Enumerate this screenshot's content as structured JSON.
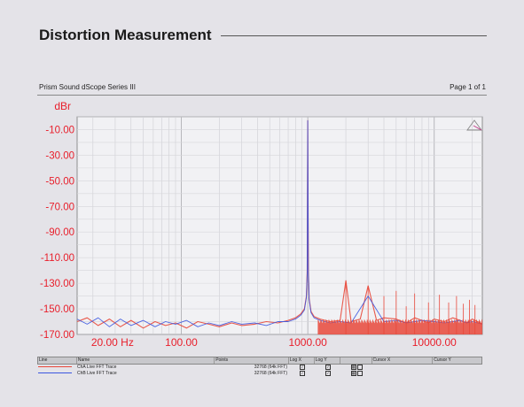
{
  "header": {
    "title": "Distortion Measurement",
    "source": "Prism Sound dScope Series III",
    "page": "Page 1 of 1"
  },
  "legend": {
    "columns": [
      "Line",
      "Name",
      "Points",
      "Log X",
      "Log Y",
      "",
      "Cursor X",
      "Cursor Y"
    ],
    "rows": [
      {
        "name": "ChA Live FFT Trace",
        "points": "32768 (64k FFT)",
        "color": "#e8483a"
      },
      {
        "name": "ChB Live FFT Trace",
        "points": "32768 (64k FFT)",
        "color": "#3a55e0"
      }
    ]
  },
  "chart_data": {
    "type": "line",
    "title": "",
    "ylabel": "dBr",
    "xlabel": "",
    "x_scale": "log",
    "xlim": [
      15,
      24000
    ],
    "ylim": [
      -170,
      0
    ],
    "grid": true,
    "y_ticks": [
      {
        "value": -10,
        "label": "-10.00"
      },
      {
        "value": -30,
        "label": "-30.00"
      },
      {
        "value": -50,
        "label": "-50.00"
      },
      {
        "value": -70,
        "label": "-70.00"
      },
      {
        "value": -90,
        "label": "-90.00"
      },
      {
        "value": -110,
        "label": "-110.00"
      },
      {
        "value": -130,
        "label": "-130.00"
      },
      {
        "value": -150,
        "label": "-150.00"
      },
      {
        "value": -170,
        "label": "-170.00"
      }
    ],
    "x_ticks": [
      {
        "value": 20,
        "label": "20.00 Hz"
      },
      {
        "value": 100,
        "label": "100.00"
      },
      {
        "value": 1000,
        "label": "1000.00"
      },
      {
        "value": 10000,
        "label": "10000.00"
      }
    ],
    "axis_color": "#e81e2a",
    "series": [
      {
        "name": "ChA Live FFT Trace",
        "color": "#e8483a",
        "x": [
          15,
          18,
          22,
          27,
          33,
          40,
          50,
          62,
          75,
          90,
          110,
          135,
          165,
          200,
          250,
          300,
          380,
          470,
          580,
          700,
          800,
          880,
          940,
          975,
          990,
          1000,
          1010,
          1025,
          1060,
          1120,
          1250,
          1500,
          1800,
          2000,
          2200,
          2600,
          3000,
          3500,
          4000,
          5000,
          6000,
          7000,
          8000,
          9000,
          10000,
          12000,
          14000,
          16000,
          18000,
          20000,
          22000,
          24000
        ],
        "y": [
          -160,
          -157,
          -163,
          -158,
          -164,
          -159,
          -165,
          -160,
          -163,
          -161,
          -165,
          -160,
          -162,
          -164,
          -161,
          -163,
          -162,
          -160,
          -161,
          -159,
          -157,
          -154,
          -150,
          -140,
          -120,
          -3,
          -120,
          -142,
          -152,
          -156,
          -158,
          -160,
          -159,
          -128,
          -160,
          -158,
          -132,
          -159,
          -157,
          -158,
          -161,
          -157,
          -159,
          -161,
          -158,
          -160,
          -157,
          -159,
          -161,
          -158,
          -160,
          -162
        ]
      },
      {
        "name": "ChB Live FFT Trace",
        "color": "#3a55e0",
        "x": [
          15,
          18,
          22,
          27,
          33,
          40,
          50,
          62,
          75,
          90,
          110,
          135,
          165,
          200,
          250,
          300,
          380,
          470,
          580,
          700,
          800,
          880,
          940,
          975,
          990,
          1000,
          1010,
          1025,
          1060,
          1120,
          1250,
          1500,
          1800,
          2200,
          3000,
          4000,
          5000,
          6000,
          7000,
          8000,
          10000,
          12000,
          14000,
          16000,
          18000,
          20000,
          22000,
          24000
        ],
        "y": [
          -158,
          -162,
          -157,
          -164,
          -158,
          -163,
          -159,
          -164,
          -160,
          -162,
          -159,
          -164,
          -161,
          -163,
          -160,
          -162,
          -161,
          -163,
          -160,
          -160,
          -158,
          -155,
          -151,
          -141,
          -122,
          -3,
          -121,
          -143,
          -153,
          -157,
          -159,
          -161,
          -160,
          -161,
          -140,
          -160,
          -159,
          -161,
          -160,
          -159,
          -160,
          -161,
          -160,
          -159,
          -161,
          -160,
          -161,
          -162
        ]
      }
    ],
    "spur_lines": [
      {
        "x": 2000,
        "y": -128
      },
      {
        "x": 3000,
        "y": -132
      },
      {
        "x": 4000,
        "y": -140
      },
      {
        "x": 5000,
        "y": -136
      },
      {
        "x": 6000,
        "y": -148
      },
      {
        "x": 7000,
        "y": -138
      },
      {
        "x": 9000,
        "y": -145
      },
      {
        "x": 11000,
        "y": -139
      },
      {
        "x": 13000,
        "y": -145
      },
      {
        "x": 15000,
        "y": -140
      },
      {
        "x": 17000,
        "y": -146
      },
      {
        "x": 19000,
        "y": -143
      },
      {
        "x": 21000,
        "y": -147
      }
    ]
  }
}
